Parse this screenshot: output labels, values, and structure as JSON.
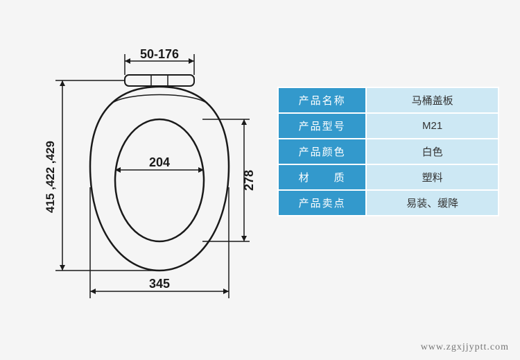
{
  "diagram": {
    "type": "infographic",
    "background_color": "#f5f5f5",
    "stroke_color": "#1a1a1a",
    "stroke_width": 2,
    "label_fontsize": 18,
    "dimensions": {
      "hinge_range": "50-176",
      "inner_width": "204",
      "inner_height": "278",
      "outer_width": "345",
      "heights": "415 ,422 ,429"
    },
    "colors": {
      "outline": "#1a1a1a",
      "bg": "#f5f5f5"
    }
  },
  "table": {
    "header_bg": "#3399cc",
    "header_color": "#ffffff",
    "cell_bg": "#cde8f4",
    "cell_color": "#333333",
    "border_color": "#ffffff",
    "rows": [
      {
        "label": "产品名称",
        "value": "马桶盖板"
      },
      {
        "label": "产品型号",
        "value": "M21"
      },
      {
        "label": "产品颜色",
        "value": "白色"
      },
      {
        "label": "材　　质",
        "value": "塑料"
      },
      {
        "label": "产品卖点",
        "value": "易装、缓降"
      }
    ]
  },
  "watermark": "www.zgxjjyptt.com"
}
